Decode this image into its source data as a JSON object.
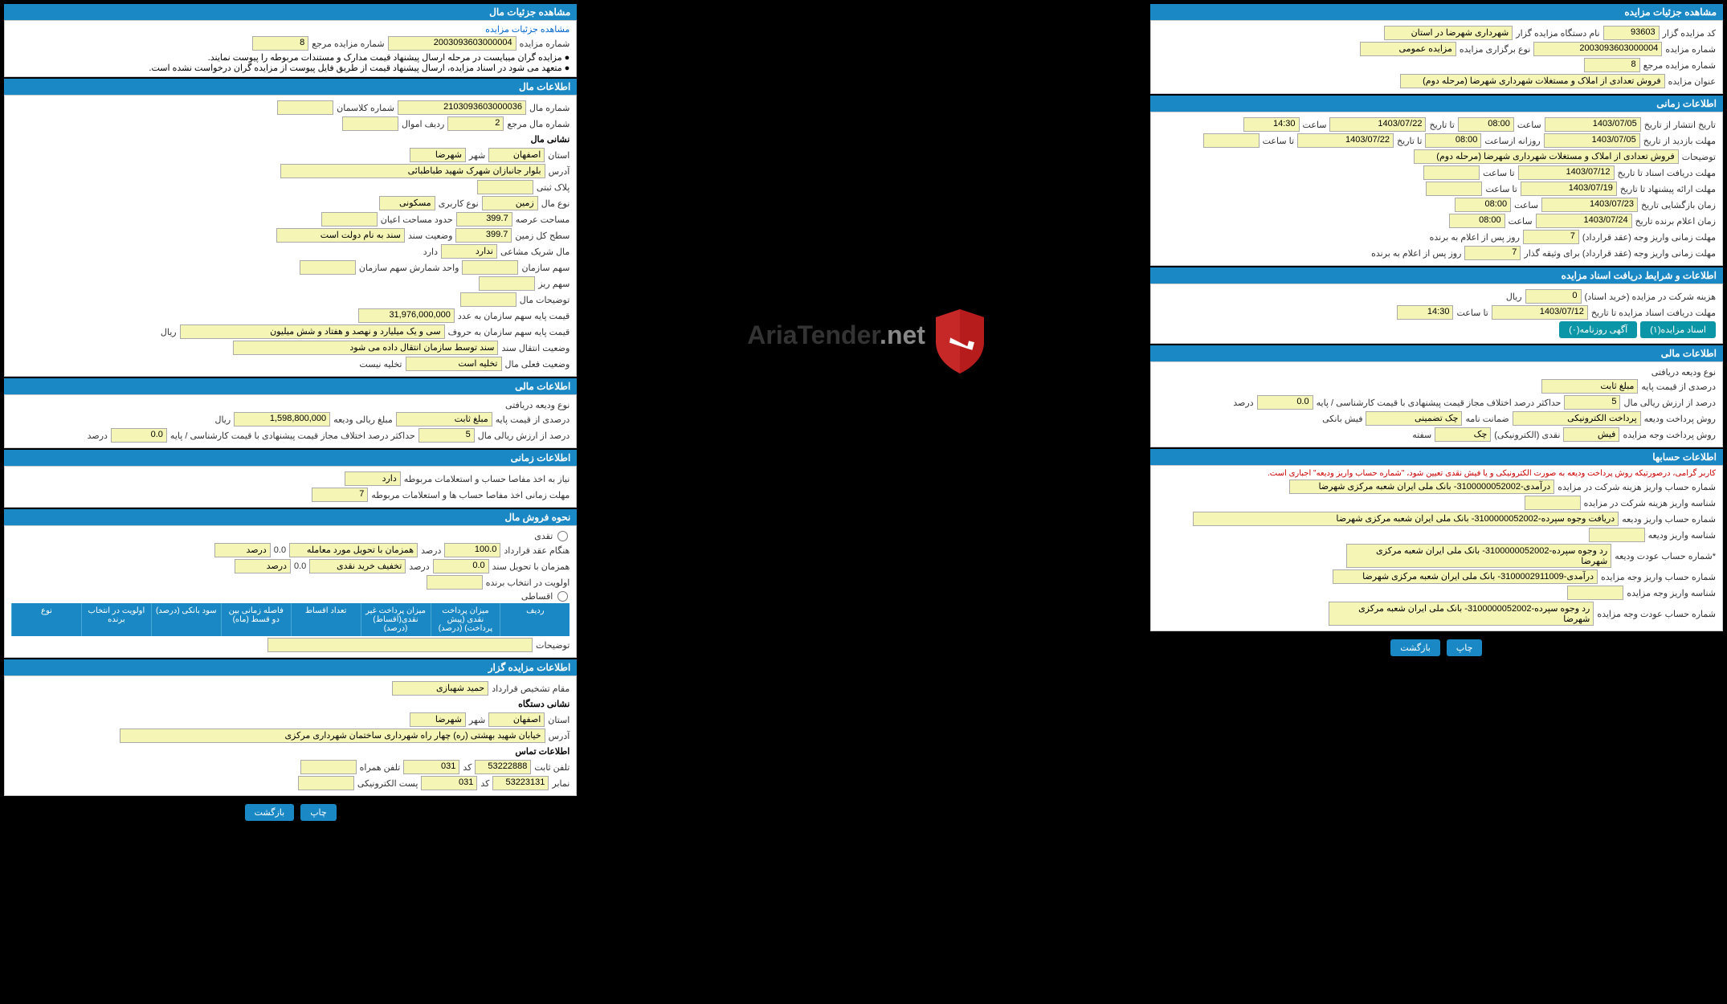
{
  "right": {
    "sections": [
      {
        "title": "مشاهده جزئیات مزایده",
        "rows": [
          [
            "کد مزایده گزار",
            "93603",
            "نام دستگاه مزایده گزار",
            "شهرداری شهرضا در استان"
          ],
          [
            "شماره مزایده",
            "2003093603000004",
            "نوع برگزاری مزایده",
            "مزایده عمومی"
          ],
          [
            "شماره مزایده مرجع",
            "8"
          ],
          [
            "عنوان مزایده",
            "فروش تعدادی از املاک و مستغلات شهرداری شهرضا (مرحله دوم)"
          ]
        ]
      },
      {
        "title": "اطلاعات زمانی",
        "rows": [
          [
            "تاریخ انتشار  از تاریخ",
            "1403/07/05",
            "ساعت",
            "08:00",
            "تا تاریخ",
            "1403/07/22",
            "ساعت",
            "14:30"
          ],
          [
            "مهلت بازدید  از تاریخ",
            "1403/07/05",
            "روزانه ازساعت",
            "08:00",
            "تا تاریخ",
            "1403/07/22",
            "تا ساعت",
            ""
          ],
          [
            "توضیحات",
            "فروش تعدادی از املاک و مستغلات شهرداری شهرضا (مرحله دوم)"
          ],
          [
            "مهلت دریافت اسناد  تا تاریخ",
            "1403/07/12",
            "تا ساعت",
            ""
          ],
          [
            "مهلت ارائه پیشنهاد  تا تاریخ",
            "1403/07/19",
            "تا ساعت",
            ""
          ],
          [
            "زمان بازگشایی  تاریخ",
            "1403/07/23",
            "ساعت",
            "08:00"
          ],
          [
            "زمان اعلام برنده  تاریخ",
            "1403/07/24",
            "ساعت",
            "08:00"
          ],
          [
            "مهلت زمانی واریز وجه (عقد قرارداد)",
            "7",
            "روز پس از اعلام به برنده"
          ],
          [
            "مهلت زمانی واریز وجه (عقد قرارداد) برای وثیقه گذار",
            "7",
            "روز پس از اعلام به برنده"
          ]
        ]
      },
      {
        "title": "اطلاعات و شرایط دریافت اسناد مزایده",
        "rows": [
          [
            "هزینه شرکت در مزایده (خرید اسناد)",
            "0",
            "ریال"
          ],
          [
            "مهلت دریافت اسناد مزایده  تا تاریخ",
            "1403/07/12",
            "تا ساعت",
            "14:30"
          ]
        ],
        "buttons": [
          "اسناد مزایده(۱)",
          "آگهی روزنامه(۰)"
        ]
      },
      {
        "title": "اطلاعات مالی",
        "rows": [
          [
            "نوع ودیعه دریافتی"
          ],
          [
            "درصدی از قیمت پایه",
            "مبلغ ثابت"
          ],
          [
            "درصد از ارزش ریالی مال",
            "5",
            "حداکثر درصد اختلاف مجاز قیمت پیشنهادی با قیمت کارشناسی / پایه",
            "0.0",
            "درصد"
          ],
          [
            "روش پرداخت ودیعه",
            "پرداخت الکترونیکی",
            "ضمانت نامه",
            "چک تضمینی",
            "فیش بانکی"
          ],
          [
            "روش پرداخت وجه مزایده",
            "فیش",
            "نقدی (الکترونیکی)",
            "چک",
            "سفته"
          ]
        ]
      },
      {
        "title": "اطلاعات حسابها",
        "note": "کاربر گرامی، درصورتیکه روش پرداخت ودیعه به صورت الکترونیکی و یا فیش نقدی تعیین شود، \"شماره حساب واریز ودیعه\" اجباری است.",
        "rows": [
          [
            "شماره حساب واریز هزینه شرکت در مزایده",
            "درآمدی-3100000052002- بانک ملی ایران شعبه مرکزی شهرضا"
          ],
          [
            "شناسه واریز هزینه شرکت در مزایده",
            ""
          ],
          [
            "شماره حساب واریز ودیعه",
            "دریافت وجوه سپرده-3100000052002- بانک ملی ایران شعبه مرکزی شهرضا"
          ],
          [
            "شناسه واریز ودیعه",
            ""
          ],
          [
            "*شماره حساب عودت ودیعه",
            "رد وجوه سپرده-3100000052002- بانک ملی ایران شعبه مرکزی شهرضا"
          ],
          [
            "شماره حساب واریز وجه مزایده",
            "درآمدی-3100002911009- بانک ملی ایران شعبه مرکزی شهرضا"
          ],
          [
            "شناسه واریز وجه مزایده",
            ""
          ],
          [
            "شماره حساب عودت وجه مزایده",
            "رد وجوه سپرده-3100000052002- بانک ملی ایران شعبه مرکزی شهرضا"
          ]
        ]
      }
    ],
    "footer_buttons": [
      "چاپ",
      "بازگشت"
    ]
  },
  "left": {
    "sections": [
      {
        "title": "مشاهده جزئیات مال",
        "link": "مشاهده جزئیات مزایده",
        "rows": [
          [
            "شماره مزایده",
            "2003093603000004",
            "شماره مزایده مرجع",
            "8"
          ],
          [
            "note",
            "مزایده گران میبایست در مرحله ارسال پیشنهاد قیمت مدارک و مستندات مربوطه را پیوست نمایند."
          ],
          [
            "note",
            "متعهد می شود در اسناد مزایده، ارسال پیشنهاد قیمت از طریق فایل پیوست از مزایده گران درخواست نشده است."
          ]
        ]
      },
      {
        "title": "اطلاعات مال",
        "rows": [
          [
            "شماره مال",
            "2103093603000036",
            "شماره کلاسمان",
            ""
          ],
          [
            "شماره مال مرجع",
            "2",
            "ردیف اموال",
            ""
          ],
          [
            "sub",
            "نشانی مال"
          ],
          [
            "استان",
            "اصفهان",
            "شهر",
            "شهرضا"
          ],
          [
            "آدرس",
            "بلوار جانبازان شهرک شهید طباطبائی"
          ],
          [
            "پلاک ثبتی",
            ""
          ],
          [
            "نوع مال",
            "زمین",
            "نوع کاربری",
            "مسکونی"
          ],
          [
            "مساحت عرصه",
            "399.7",
            "حدود مساحت اعیان",
            ""
          ],
          [
            "سطح کل زمین",
            "399.7",
            "وضعیت سند",
            "سند به نام دولت است"
          ],
          [
            "مال شریک مشاعی",
            "ندارد",
            "دارد"
          ],
          [
            "سهم سازمان",
            "",
            "واحد شمارش سهم سازمان",
            ""
          ],
          [
            "سهم ریز",
            ""
          ],
          [
            "توضیحات مال",
            ""
          ],
          [
            "قیمت پایه سهم سازمان به عدد",
            "31,976,000,000"
          ],
          [
            "قیمت پایه سهم سازمان به حروف",
            "سی و یک میلیارد و نهصد و هفتاد و شش میلیون",
            "ریال"
          ],
          [
            "وضعیت انتقال سند",
            "سند توسط سازمان انتقال داده می شود"
          ],
          [
            "وضعیت فعلی مال",
            "تخلیه است",
            "تخلیه نیست"
          ]
        ]
      },
      {
        "title": "اطلاعات مالی",
        "rows": [
          [
            "نوع ودیعه دریافتی"
          ],
          [
            "درصدی از قیمت پایه",
            "مبلغ ثابت",
            "مبلغ ریالی ودیعه",
            "1,598,800,000",
            "ریال"
          ],
          [
            "درصد از ارزش ریالی مال",
            "5",
            "حداکثر درصد اختلاف مجاز قیمت پیشنهادی با قیمت کارشناسی / پایه",
            "0.0",
            "درصد"
          ]
        ]
      },
      {
        "title": "اطلاعات زمانی",
        "rows": [
          [
            "نیاز به اخذ مفاصا حساب و استعلامات مربوطه",
            "دارد"
          ],
          [
            "مهلت زمانی اخذ مفاصا حساب ها و استعلامات مربوطه",
            "7"
          ]
        ]
      },
      {
        "title": "نحوه فروش مال",
        "rows": [
          [
            "radio",
            "تقدی"
          ],
          [
            "هنگام عقد قرارداد",
            "100.0",
            "درصد",
            "همزمان با تحویل مورد معامله",
            "0.0",
            "درصد"
          ],
          [
            "همزمان با تحویل سند",
            "0.0",
            "درصد",
            "تخفیف خرید نقدی",
            "0.0",
            "درصد"
          ],
          [
            "اولویت در انتخاب برنده",
            ""
          ],
          [
            "radio",
            "اقساطی"
          ]
        ],
        "table": [
          "ردیف",
          "میزان پرداخت نقدی (پیش پرداخت) (درصد)",
          "میزان پرداخت غیر نقدی(اقساط) (درصد)",
          "تعداد اقساط",
          "فاصله زمانی بین دو قسط (ماه)",
          "سود بانکی (درصد)",
          "اولویت در انتخاب برنده",
          "نوع"
        ],
        "rows2": [
          [
            "توضیحات",
            ""
          ]
        ]
      },
      {
        "title": "اطلاعات مزایده گزار",
        "rows": [
          [
            "مقام تشخیص قرارداد",
            "حمید شهبازی"
          ],
          [
            "sub",
            "نشانی دستگاه"
          ],
          [
            "استان",
            "اصفهان",
            "شهر",
            "شهرضا"
          ],
          [
            "آدرس",
            "خیابان شهید بهشتی (ره) چهار راه شهرداری ساختمان شهرداری مرکزی"
          ],
          [
            "sub",
            "اطلاعات تماس"
          ],
          [
            "تلفن ثابت",
            "53222888",
            "کد",
            "031",
            "تلفن همراه",
            ""
          ],
          [
            "نمابر",
            "53223131",
            "کد",
            "031",
            "پست الکترونیکی",
            ""
          ]
        ]
      }
    ],
    "footer_buttons": [
      "چاپ",
      "بازگشت"
    ]
  },
  "logo": {
    "text1": "AriaTender",
    "text2": ".net"
  }
}
